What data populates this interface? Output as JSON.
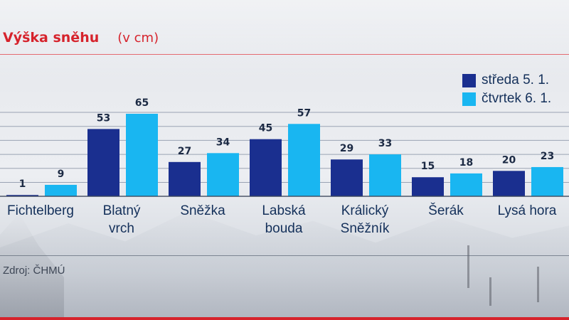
{
  "title": "Výška sněhu",
  "unit": "(v cm)",
  "source": "Zdroj: ČHMÚ",
  "colors": {
    "series1": "#1a2f8f",
    "series2": "#19b6f1",
    "title": "#d6232c",
    "text": "#14305a"
  },
  "chart_data": {
    "type": "bar",
    "categories": [
      "Fichtelberg",
      "Blatný vrch",
      "Sněžka",
      "Labská bouda",
      "Králický Sněžník",
      "Šerák",
      "Lysá hora"
    ],
    "category_lines": [
      [
        "Fichtelberg"
      ],
      [
        "Blatný",
        "vrch"
      ],
      [
        "Sněžka"
      ],
      [
        "Labská",
        "bouda"
      ],
      [
        "Králický",
        "Sněžník"
      ],
      [
        "Šerák"
      ],
      [
        "Lysá hora"
      ]
    ],
    "series": [
      {
        "name": "středa 5. 1.",
        "values": [
          1,
          53,
          27,
          45,
          29,
          15,
          20
        ]
      },
      {
        "name": "čtvrtek 6. 1.",
        "values": [
          9,
          65,
          34,
          57,
          33,
          18,
          23
        ]
      }
    ],
    "ylim": [
      0,
      65
    ],
    "grid": true,
    "legend_position": "top-right",
    "data_labels": true
  }
}
